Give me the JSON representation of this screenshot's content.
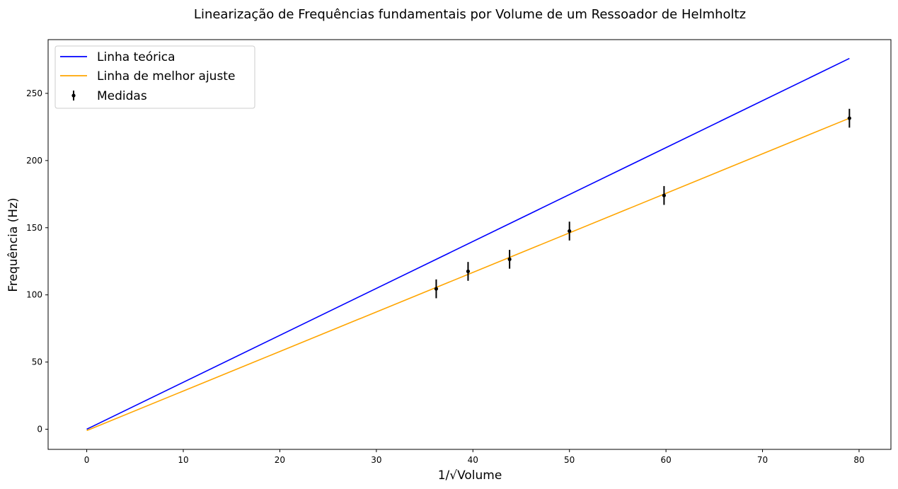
{
  "chart_data": {
    "type": "line",
    "title": "Linearização de Frequências fundamentais por Volume de um Ressoador de Helmholtz",
    "xlabel": "1/√Volume",
    "ylabel": "Frequência (Hz)",
    "xlim": [
      -4,
      83.3
    ],
    "ylim": [
      -15,
      290
    ],
    "xticks": [
      0,
      10,
      20,
      30,
      40,
      50,
      60,
      70,
      80
    ],
    "yticks": [
      0,
      50,
      100,
      150,
      200,
      250
    ],
    "grid": false,
    "legend_position": "top-left",
    "series": [
      {
        "name": "Linha teórica",
        "kind": "line",
        "color": "#0000ff",
        "x": [
          0,
          79
        ],
        "y": [
          0,
          276
        ]
      },
      {
        "name": "Linha de melhor ajuste",
        "kind": "line",
        "color": "#ffa500",
        "x": [
          0,
          79
        ],
        "y": [
          -1,
          231.5
        ]
      },
      {
        "name": "Medidas",
        "kind": "errorbar",
        "color": "#000000",
        "x": [
          36.2,
          39.5,
          43.8,
          50.0,
          59.8,
          79.0
        ],
        "y": [
          104.5,
          117.5,
          126.5,
          147.5,
          174.0,
          231.5
        ],
        "yerr": [
          7,
          7,
          7,
          7,
          7,
          7
        ]
      }
    ]
  }
}
